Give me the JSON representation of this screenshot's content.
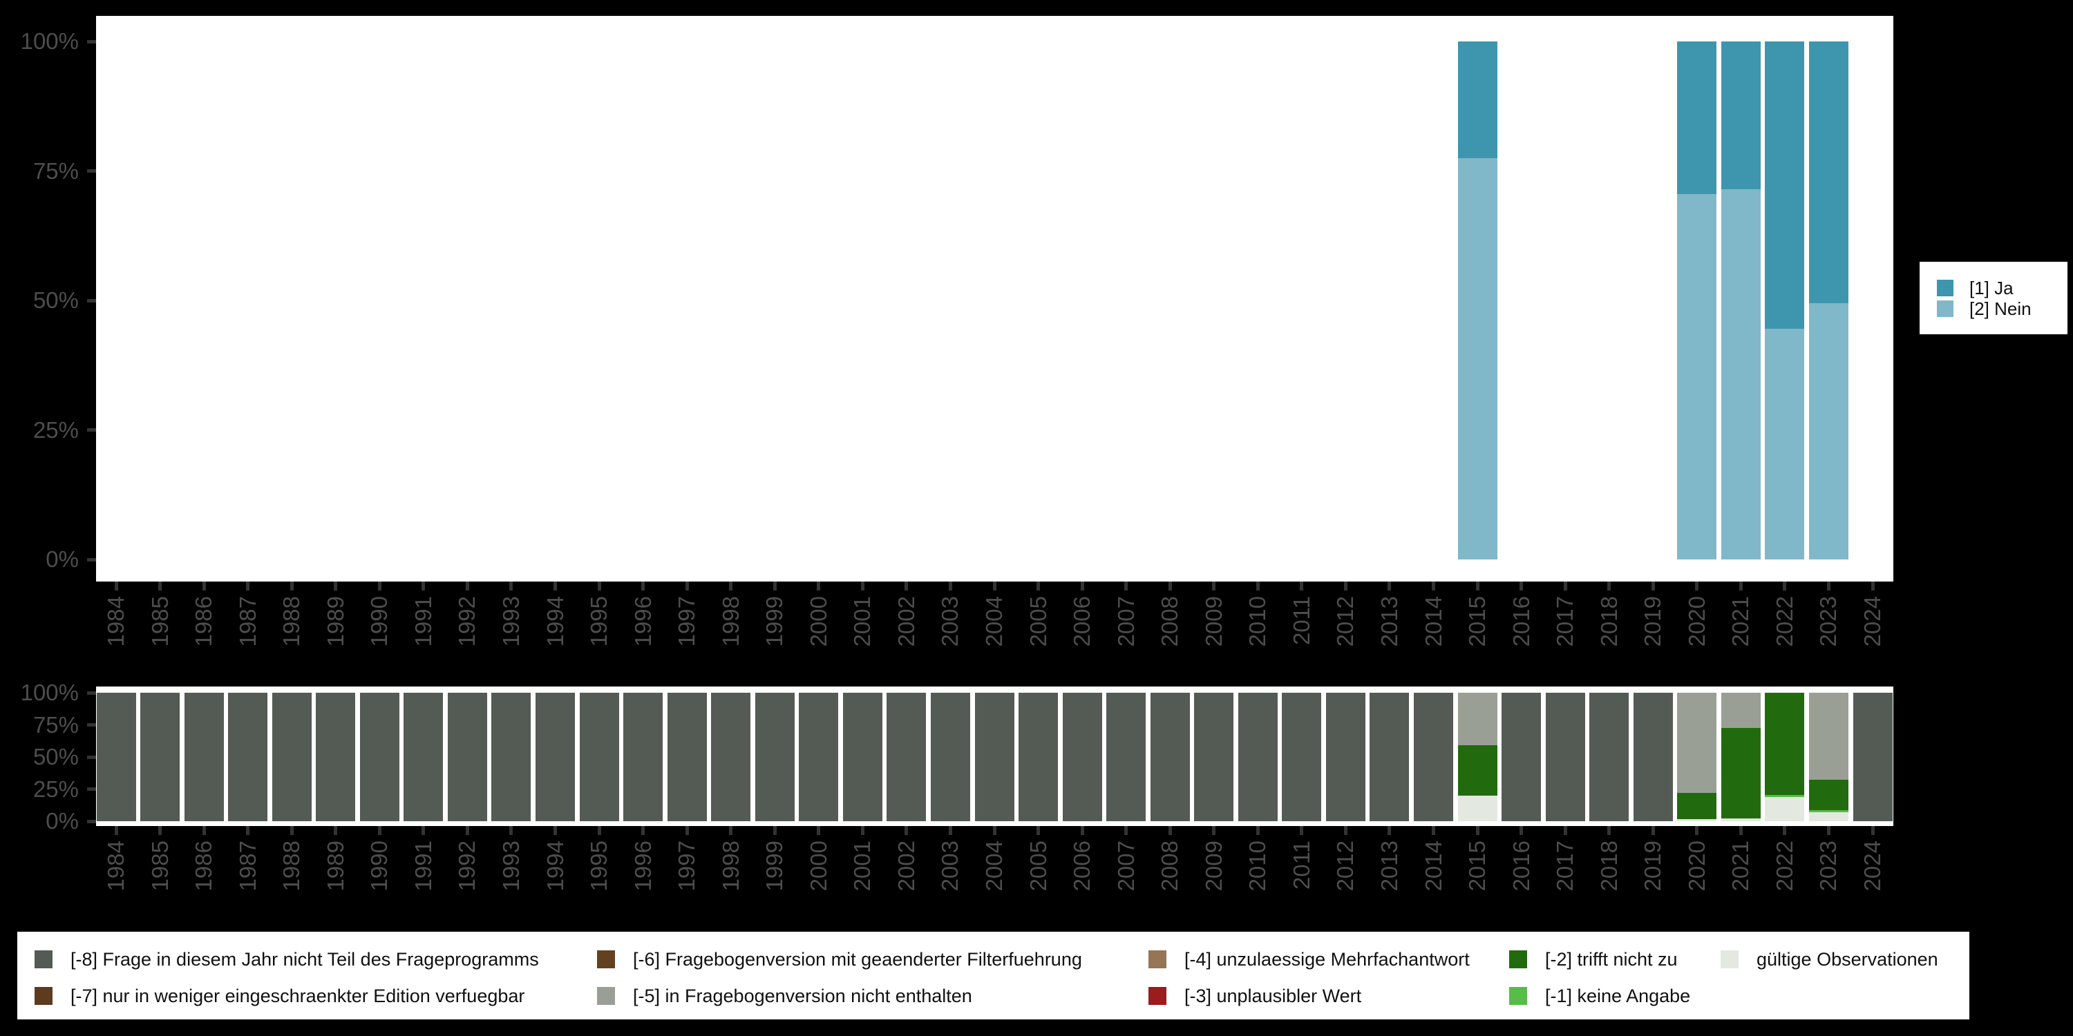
{
  "figure": {
    "background_color": "#000000",
    "panel_color": "#ffffff",
    "axis_text_color": "#4d4d4d",
    "axis_tick_color": "#333333"
  },
  "chart_data": [
    {
      "id": "responses-percent",
      "type": "bar",
      "stacked": true,
      "unit": "percent",
      "title": "",
      "xlabel": "",
      "ylabel": "",
      "ylim": [
        0,
        100
      ],
      "grid": false,
      "legend_position": "right",
      "y_tick_labels": [
        "0%",
        "25%",
        "50%",
        "75%",
        "100%"
      ],
      "y_tick_values": [
        0,
        25,
        50,
        75,
        100
      ],
      "categories": [
        "1984",
        "1985",
        "1986",
        "1987",
        "1988",
        "1989",
        "1990",
        "1991",
        "1992",
        "1993",
        "1994",
        "1995",
        "1996",
        "1997",
        "1998",
        "1999",
        "2000",
        "2001",
        "2002",
        "2003",
        "2004",
        "2005",
        "2006",
        "2007",
        "2008",
        "2009",
        "2010",
        "2011",
        "2012",
        "2013",
        "2014",
        "2015",
        "2016",
        "2017",
        "2018",
        "2019",
        "2020",
        "2021",
        "2022",
        "2023",
        "2024"
      ],
      "series": [
        {
          "name": "[2] Nein",
          "color": "#80b8c9",
          "values": [
            null,
            null,
            null,
            null,
            null,
            null,
            null,
            null,
            null,
            null,
            null,
            null,
            null,
            null,
            null,
            null,
            null,
            null,
            null,
            null,
            null,
            null,
            null,
            null,
            null,
            null,
            null,
            null,
            null,
            null,
            null,
            77.5,
            null,
            null,
            null,
            null,
            70.5,
            71.5,
            44.5,
            49.5,
            null
          ]
        },
        {
          "name": "[1] Ja",
          "color": "#3e96ae",
          "values": [
            null,
            null,
            null,
            null,
            null,
            null,
            null,
            null,
            null,
            null,
            null,
            null,
            null,
            null,
            null,
            null,
            null,
            null,
            null,
            null,
            null,
            null,
            null,
            null,
            null,
            null,
            null,
            null,
            null,
            null,
            null,
            22.5,
            null,
            null,
            null,
            null,
            29.5,
            28.5,
            55.5,
            50.5,
            null
          ]
        }
      ]
    },
    {
      "id": "missings-percent",
      "type": "bar",
      "stacked": true,
      "unit": "percent",
      "title": "",
      "xlabel": "",
      "ylabel": "",
      "ylim": [
        0,
        100
      ],
      "grid": false,
      "legend_position": "bottom",
      "y_tick_labels": [
        "0%",
        "25%",
        "50%",
        "75%",
        "100%"
      ],
      "y_tick_values": [
        0,
        25,
        50,
        75,
        100
      ],
      "categories": [
        "1984",
        "1985",
        "1986",
        "1987",
        "1988",
        "1989",
        "1990",
        "1991",
        "1992",
        "1993",
        "1994",
        "1995",
        "1996",
        "1997",
        "1998",
        "1999",
        "2000",
        "2001",
        "2002",
        "2003",
        "2004",
        "2005",
        "2006",
        "2007",
        "2008",
        "2009",
        "2010",
        "2011",
        "2012",
        "2013",
        "2014",
        "2015",
        "2016",
        "2017",
        "2018",
        "2019",
        "2020",
        "2021",
        "2022",
        "2023",
        "2024"
      ],
      "series": [
        {
          "name": "gültige Observationen",
          "color": "#e3e8e1",
          "values": [
            null,
            null,
            null,
            null,
            null,
            null,
            null,
            null,
            null,
            null,
            null,
            null,
            null,
            null,
            null,
            null,
            null,
            null,
            null,
            null,
            null,
            null,
            null,
            null,
            null,
            null,
            null,
            null,
            null,
            null,
            null,
            20,
            null,
            null,
            null,
            null,
            1.5,
            2,
            19,
            7,
            null
          ]
        },
        {
          "name": "[-1] keine Angabe",
          "color": "#56bd48",
          "values": [
            null,
            null,
            null,
            null,
            null,
            null,
            null,
            null,
            null,
            null,
            null,
            null,
            null,
            null,
            null,
            null,
            null,
            null,
            null,
            null,
            null,
            null,
            null,
            null,
            null,
            null,
            null,
            null,
            null,
            null,
            null,
            null,
            null,
            null,
            null,
            null,
            null,
            null,
            1.5,
            1.5,
            null
          ]
        },
        {
          "name": "[-2] trifft nicht zu",
          "color": "#216b0e",
          "values": [
            null,
            null,
            null,
            null,
            null,
            null,
            null,
            null,
            null,
            null,
            null,
            null,
            null,
            null,
            null,
            null,
            null,
            null,
            null,
            null,
            null,
            null,
            null,
            null,
            null,
            null,
            null,
            null,
            null,
            null,
            null,
            39,
            null,
            null,
            null,
            null,
            20.5,
            70.5,
            79.5,
            24,
            null
          ]
        },
        {
          "name": "[-5] in Fragebogenversion nicht enthalten",
          "color": "#9a9f96",
          "values": [
            null,
            null,
            null,
            null,
            null,
            null,
            null,
            null,
            null,
            null,
            null,
            null,
            null,
            null,
            null,
            null,
            null,
            null,
            null,
            null,
            null,
            null,
            null,
            null,
            null,
            null,
            null,
            null,
            null,
            null,
            null,
            41,
            null,
            null,
            null,
            null,
            78,
            27.5,
            null,
            67.5,
            null
          ]
        },
        {
          "name": "[-8] Frage in diesem Jahr nicht Teil des Frageprogramms",
          "color": "#545a54",
          "values": [
            100,
            100,
            100,
            100,
            100,
            100,
            100,
            100,
            100,
            100,
            100,
            100,
            100,
            100,
            100,
            100,
            100,
            100,
            100,
            100,
            100,
            100,
            100,
            100,
            100,
            100,
            100,
            100,
            100,
            100,
            100,
            null,
            100,
            100,
            100,
            100,
            null,
            null,
            null,
            null,
            100
          ]
        }
      ]
    }
  ],
  "legend_top": {
    "items": [
      {
        "label": "[1] Ja",
        "color": "#3e96ae"
      },
      {
        "label": "[2] Nein",
        "color": "#80b8c9"
      }
    ]
  },
  "legend_bottom": {
    "items": [
      {
        "label": "[-8] Frage in diesem Jahr nicht Teil des Frageprogramms",
        "color": "#545a54",
        "col": 0,
        "row": 0
      },
      {
        "label": "[-7] nur in weniger eingeschraenkter Edition verfuegbar",
        "color": "#5e3b1e",
        "col": 0,
        "row": 1
      },
      {
        "label": "[-6] Fragebogenversion mit geaenderter Filterfuehrung",
        "color": "#63401f",
        "col": 1,
        "row": 0
      },
      {
        "label": "[-5] in Fragebogenversion nicht enthalten",
        "color": "#9a9f96",
        "col": 1,
        "row": 1
      },
      {
        "label": "[-4] unzulaessige Mehrfachantwort",
        "color": "#967554",
        "col": 2,
        "row": 0
      },
      {
        "label": "[-3] unplausibler Wert",
        "color": "#9b1c1c",
        "col": 2,
        "row": 1
      },
      {
        "label": "[-2] trifft nicht zu",
        "color": "#216b0e",
        "col": 3,
        "row": 0
      },
      {
        "label": "[-1] keine Angabe",
        "color": "#56bd48",
        "col": 3,
        "row": 1
      },
      {
        "label": "gültige Observationen",
        "color": "#e3e8e1",
        "col": 4,
        "row": 0
      }
    ]
  }
}
